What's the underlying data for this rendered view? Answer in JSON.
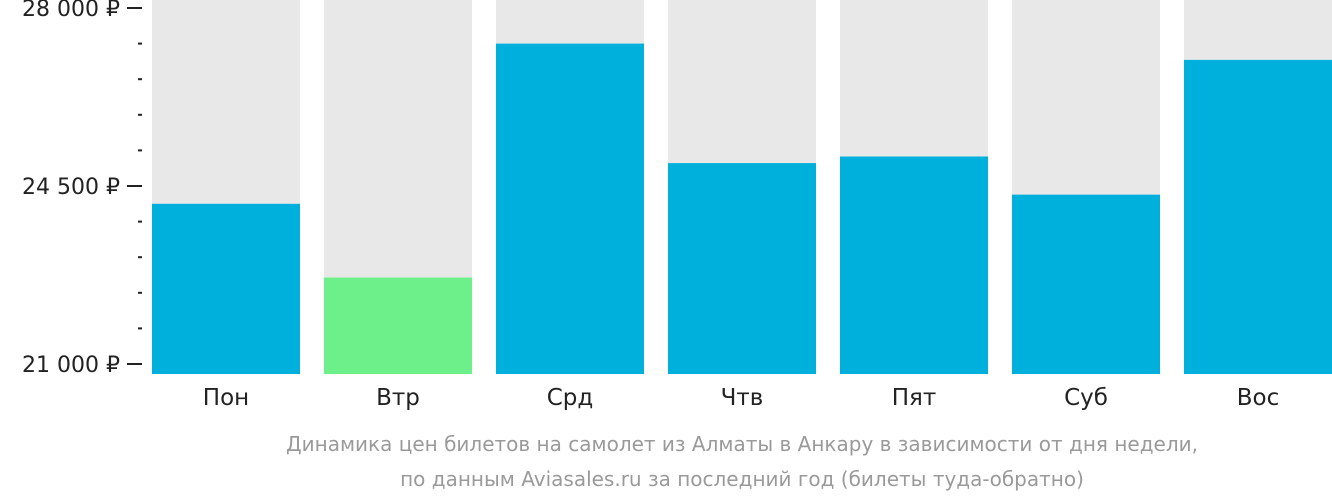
{
  "chart_data": {
    "type": "bar",
    "categories": [
      "Пон",
      "Втр",
      "Срд",
      "Чтв",
      "Пят",
      "Суб",
      "Вос"
    ],
    "values": [
      24150,
      22700,
      27300,
      24950,
      25080,
      24330,
      26980
    ],
    "highlight_index": 1,
    "ylim": [
      21000,
      28000
    ],
    "major_ticks": [
      21000,
      24500,
      28000
    ],
    "major_tick_labels": [
      "21 000 ₽",
      "24 500 ₽",
      "28 000 ₽"
    ],
    "minor_tick_step": 700,
    "title": "",
    "xlabel": "",
    "ylabel": "",
    "caption_lines": [
      "Динамика цен билетов на самолет из Алматы в Анкару в зависимости от дня недели,",
      "по данным Aviasales.ru за последний год (билеты туда-обратно)"
    ],
    "colors": {
      "bar": "#00b0dc",
      "bar_highlight": "#6df08a",
      "bar_background": "#e8e8e8",
      "axis": "#222222",
      "caption": "#9a9a9a"
    }
  }
}
